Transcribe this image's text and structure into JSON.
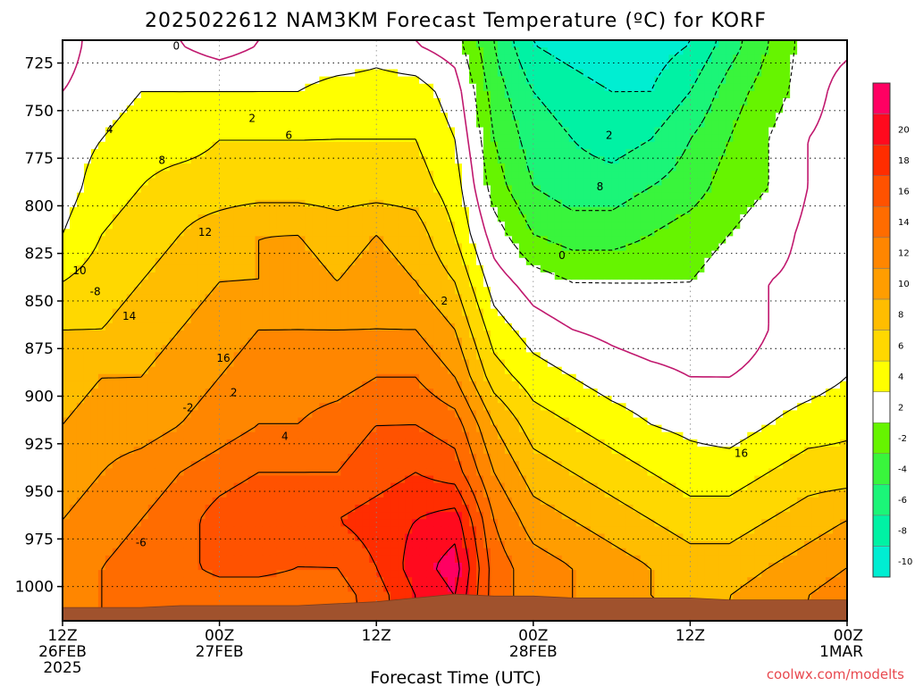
{
  "title": "2025022612 NAM3KM Forecast Temperature (ºC) for KORF",
  "credit": "coolwx.com/modelts",
  "chart_data": {
    "type": "contour",
    "title": "2025022612 NAM3KM Forecast Temperature (ºC) for KORF",
    "xlabel": "Forecast Time (UTC)",
    "ylabel": "",
    "x_ticks": [
      {
        "hour": 0,
        "lines": [
          "12Z",
          "26FEB",
          "2025"
        ]
      },
      {
        "hour": 12,
        "lines": [
          "00Z",
          "27FEB"
        ]
      },
      {
        "hour": 24,
        "lines": [
          "12Z"
        ]
      },
      {
        "hour": 36,
        "lines": [
          "00Z",
          "28FEB"
        ]
      },
      {
        "hour": 48,
        "lines": [
          "12Z"
        ]
      },
      {
        "hour": 60,
        "lines": [
          "00Z",
          "1MAR"
        ]
      }
    ],
    "xlim": [
      0,
      60
    ],
    "y_ticks": [
      725,
      750,
      775,
      800,
      825,
      850,
      875,
      900,
      925,
      950,
      975,
      1000
    ],
    "ylim": [
      1018,
      713
    ],
    "grid": true,
    "contour_interval": 2,
    "contour_labels": [
      "0",
      "2",
      "4",
      "6",
      "8",
      "10",
      "12",
      "14",
      "16",
      "2",
      "4",
      "2",
      "-2",
      "-6",
      "-8",
      "0",
      "2",
      "8",
      "16"
    ],
    "legend": {
      "placement": "right",
      "bands": [
        {
          "label": "-10",
          "color": "#00eed2"
        },
        {
          "label": "-8",
          "color": "#00f2a4"
        },
        {
          "label": "-6",
          "color": "#1bf578"
        },
        {
          "label": "-4",
          "color": "#39f53c"
        },
        {
          "label": "-2",
          "color": "#66f400"
        },
        {
          "label": "2",
          "color": "#ffffff"
        },
        {
          "label": "4",
          "color": "#ffff00"
        },
        {
          "label": "6",
          "color": "#ffd800"
        },
        {
          "label": "8",
          "color": "#ffbd00"
        },
        {
          "label": "10",
          "color": "#ff9d00"
        },
        {
          "label": "12",
          "color": "#ff8600"
        },
        {
          "label": "14",
          "color": "#ff6c00"
        },
        {
          "label": "16",
          "color": "#ff5200"
        },
        {
          "label": "18",
          "color": "#ff2d00"
        },
        {
          "label": "20",
          "color": "#ff0a1e"
        },
        {
          "label": "",
          "color": "#ff0062"
        }
      ]
    },
    "temperature_grid": {
      "hours": [
        0,
        3,
        6,
        9,
        12,
        15,
        18,
        21,
        24,
        27,
        30,
        33,
        36,
        39,
        42,
        45,
        48,
        51,
        54,
        57,
        60
      ],
      "levels_hPa": [
        715,
        740,
        765,
        790,
        815,
        840,
        865,
        890,
        915,
        940,
        965,
        990,
        1005
      ],
      "values_C": [
        [
          -1,
          1,
          1,
          0,
          -1,
          0,
          0,
          0,
          1,
          0,
          -1,
          -6,
          -10,
          -11,
          -12,
          -11,
          -10,
          -7,
          -4,
          -1,
          -0.5
        ],
        [
          0,
          1,
          2,
          2,
          2,
          2,
          2,
          3,
          3,
          3,
          1,
          -5,
          -8,
          -9,
          -10,
          -10,
          -8,
          -5,
          -3,
          -1,
          1
        ],
        [
          1,
          2,
          3,
          3,
          4,
          4,
          4,
          4,
          4,
          4,
          2,
          -4,
          -7,
          -8,
          -9,
          -8,
          -6,
          -4,
          -2,
          0,
          1
        ],
        [
          1,
          3,
          4,
          5,
          5,
          5,
          5,
          5,
          5,
          5,
          3,
          -3,
          -6,
          -7,
          -7,
          -6,
          -5,
          -3,
          -2,
          0,
          1
        ],
        [
          2,
          4,
          5,
          6,
          7,
          8,
          8,
          7,
          8,
          7,
          4,
          -1,
          -4,
          -5,
          -5,
          -4,
          -3,
          -2,
          -1,
          0.5,
          1
        ],
        [
          4,
          5,
          6,
          7,
          8,
          8,
          9,
          8,
          9,
          8,
          6,
          1,
          -1,
          -2,
          -2,
          -2,
          -2,
          -1,
          0,
          0.5,
          1
        ],
        [
          6,
          6,
          7,
          8,
          9,
          10,
          10,
          10,
          10,
          10,
          8,
          3,
          1,
          0,
          -0.5,
          -1,
          -1,
          -1,
          0,
          1,
          1.5
        ],
        [
          7,
          8,
          8,
          9,
          10,
          11,
          11,
          11,
          12,
          12,
          10,
          5,
          3,
          2,
          1,
          0.5,
          0,
          0,
          0.5,
          1,
          2
        ],
        [
          8,
          9,
          9,
          10,
          11,
          12,
          12,
          13,
          14,
          14,
          13,
          8,
          5,
          4,
          3,
          2,
          1.5,
          1,
          2,
          3,
          3.5
        ],
        [
          9,
          10,
          11,
          12,
          13,
          14,
          14,
          14,
          15,
          16,
          15,
          10,
          7,
          6,
          5,
          4,
          3,
          3,
          4,
          5,
          5
        ],
        [
          10,
          11,
          12,
          13,
          15,
          16,
          16,
          16,
          17,
          18,
          19,
          12,
          9,
          8,
          7,
          6,
          5,
          5,
          6,
          7,
          8
        ],
        [
          11,
          12,
          13,
          13,
          15,
          15,
          14,
          14,
          16,
          19,
          21,
          13,
          11,
          10,
          9,
          8,
          7,
          7,
          8,
          9,
          10
        ],
        [
          11,
          12,
          12,
          12,
          12,
          12,
          12,
          13,
          15,
          18,
          20,
          13,
          11,
          10,
          9,
          8,
          8,
          8,
          9,
          10,
          11
        ]
      ]
    },
    "surface_pressure_hPa": [
      1011,
      1011,
      1011,
      1010,
      1010,
      1010,
      1010,
      1009,
      1008,
      1006,
      1004,
      1005,
      1005,
      1006,
      1006,
      1006,
      1006,
      1007,
      1007,
      1007,
      1007
    ]
  }
}
